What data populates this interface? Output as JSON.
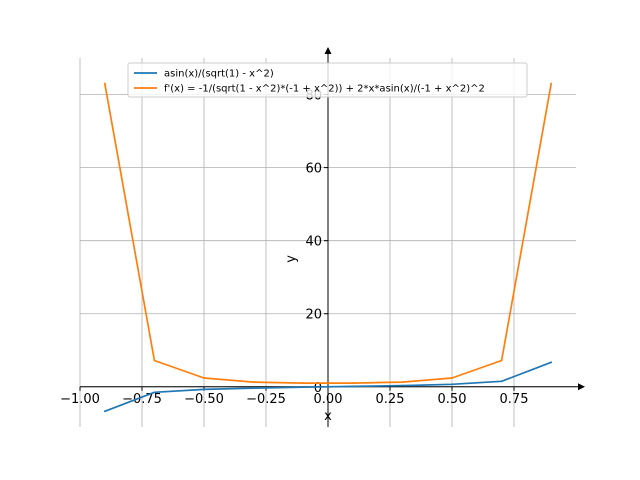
{
  "chart_data": {
    "type": "line",
    "title": "",
    "xlabel": "x",
    "ylabel": "y",
    "xlim": [
      -1.0,
      1.0
    ],
    "ylim": [
      -11,
      90
    ],
    "grid": true,
    "legend_position": "top",
    "x_ticks": [
      -1.0,
      -0.75,
      -0.5,
      -0.25,
      0.0,
      0.25,
      0.5,
      0.75
    ],
    "x_tick_labels": [
      "−1.00",
      "−0.75",
      "−0.50",
      "−0.25",
      "0.00",
      "0.25",
      "0.50",
      "0.75"
    ],
    "y_ticks": [
      0,
      20,
      40,
      60,
      80
    ],
    "y_tick_labels": [
      "0",
      "20",
      "40",
      "60",
      "80"
    ],
    "series": [
      {
        "name": "asin(x)/(sqrt(1) - x^2)",
        "color": "#1f77b4",
        "x": [
          -0.9,
          -0.7,
          -0.5,
          -0.3,
          -0.1,
          0.1,
          0.3,
          0.5,
          0.7,
          0.9
        ],
        "y": [
          -6.7,
          -1.5,
          -0.7,
          -0.34,
          -0.1,
          0.1,
          0.34,
          0.7,
          1.5,
          6.7
        ]
      },
      {
        "name": "f'(x) = -1/(sqrt(1 - x^2)*(-1 + x^2)) + 2*x*asin(x)/(-1 + x^2)^2",
        "color": "#ff7f0e",
        "x": [
          -0.9,
          -0.7,
          -0.5,
          -0.3,
          -0.1,
          0.1,
          0.3,
          0.5,
          0.7,
          0.9
        ],
        "y": [
          83,
          7.2,
          2.4,
          1.3,
          1.02,
          1.02,
          1.3,
          2.4,
          7.2,
          83
        ]
      }
    ]
  }
}
